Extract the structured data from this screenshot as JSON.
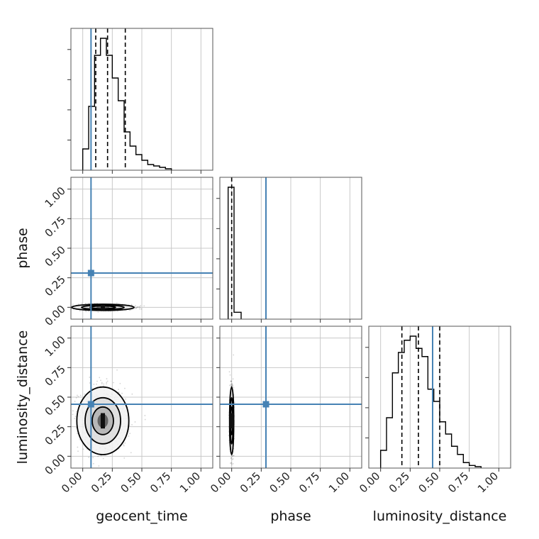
{
  "chart_data": {
    "type": "corner",
    "parameters": [
      "geocent_time",
      "phase",
      "luminosity_distance"
    ],
    "axis_range": [
      -0.1,
      1.1
    ],
    "ticks": [
      0.0,
      0.25,
      0.5,
      0.75,
      1.0
    ],
    "tick_labels": [
      "0.00",
      "0.25",
      "0.50",
      "0.75",
      "1.00"
    ],
    "grid": true,
    "injection": {
      "geocent_time": 0.07,
      "phase": 0.29,
      "luminosity_distance": 0.44
    },
    "quantiles": {
      "geocent_time": [
        0.11,
        0.21,
        0.36
      ],
      "phase": [
        0.0
      ],
      "luminosity_distance": [
        0.18,
        0.32,
        0.5
      ]
    },
    "histograms": {
      "geocent_time": {
        "bin_edges": [
          0.0,
          0.05,
          0.1,
          0.15,
          0.2,
          0.25,
          0.3,
          0.35,
          0.4,
          0.45,
          0.5,
          0.55,
          0.6,
          0.65,
          0.7,
          0.75
        ],
        "counts": [
          7,
          22,
          40,
          46,
          40,
          32,
          24,
          13,
          8,
          5,
          3,
          1.5,
          1,
          0.5,
          0
        ]
      },
      "phase": {
        "bin_edges": [
          -0.03,
          0.02,
          0.08
        ],
        "counts": [
          48,
          2
        ]
      },
      "luminosity_distance": {
        "bin_edges": [
          0.0,
          0.05,
          0.1,
          0.15,
          0.2,
          0.25,
          0.3,
          0.35,
          0.4,
          0.45,
          0.5,
          0.55,
          0.6,
          0.65,
          0.7,
          0.75,
          0.8,
          0.85
        ],
        "counts": [
          4,
          12,
          23,
          28,
          31,
          32,
          29,
          27,
          19,
          16,
          11,
          8,
          5,
          3,
          1,
          0.3,
          0
        ]
      }
    },
    "samples_2d": {
      "geocent_time_vs_phase": {
        "x_center": 0.17,
        "x_spread": 0.12,
        "y_center": 0.0,
        "y_spread": 0.012
      },
      "geocent_time_vs_luminosity_distance": {
        "x_center": 0.17,
        "x_spread": 0.1,
        "y_center": 0.3,
        "y_spread": 0.13
      },
      "phase_vs_luminosity_distance": {
        "x_center": 0.0,
        "x_spread": 0.008,
        "y_center": 0.3,
        "y_spread": 0.13
      }
    },
    "colors": {
      "histogram": "#000000",
      "injection": "#4682b4",
      "grid": "#c8c8c8",
      "samples": "#555555"
    }
  }
}
